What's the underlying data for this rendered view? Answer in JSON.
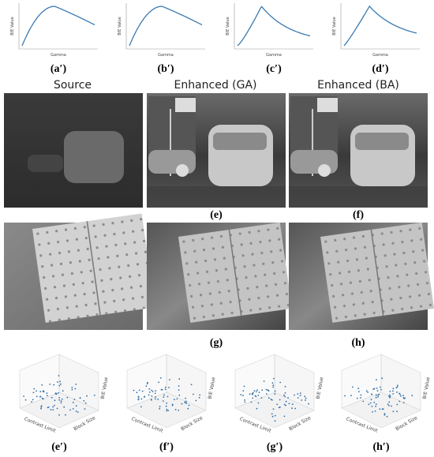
{
  "line_plots": [
    {
      "label": "(a′)",
      "x_label": "Gamma",
      "y_label": "BIE Value"
    },
    {
      "label": "(b′)",
      "x_label": "Gamma",
      "y_label": "BIE Value"
    },
    {
      "label": "(c′)",
      "x_label": "Gamma",
      "y_label": "BIE Value"
    },
    {
      "label": "(d′)",
      "x_label": "Gamma",
      "y_label": "BIE Value"
    }
  ],
  "column_titles": [
    "Source",
    "Enhanced (GA)",
    "Enhanced (BA)"
  ],
  "image_labels": [
    "(e)",
    "(f)",
    "(g)",
    "(h)"
  ],
  "surface_plots": [
    {
      "label": "(e′)",
      "x_label": "Contrast Limit",
      "y_label": "Block Size",
      "z_label": "BIE Value"
    },
    {
      "label": "(f′)",
      "x_label": "Contrast Limit",
      "y_label": "Block Size",
      "z_label": "BIE Value"
    },
    {
      "label": "(g′)",
      "x_label": "Contrast Limit",
      "y_label": "Block Size",
      "z_label": "BIE Value"
    },
    {
      "label": "(h′)",
      "x_label": "Contrast Limit",
      "y_label": "Block Size",
      "z_label": "BIE Value"
    }
  ]
}
